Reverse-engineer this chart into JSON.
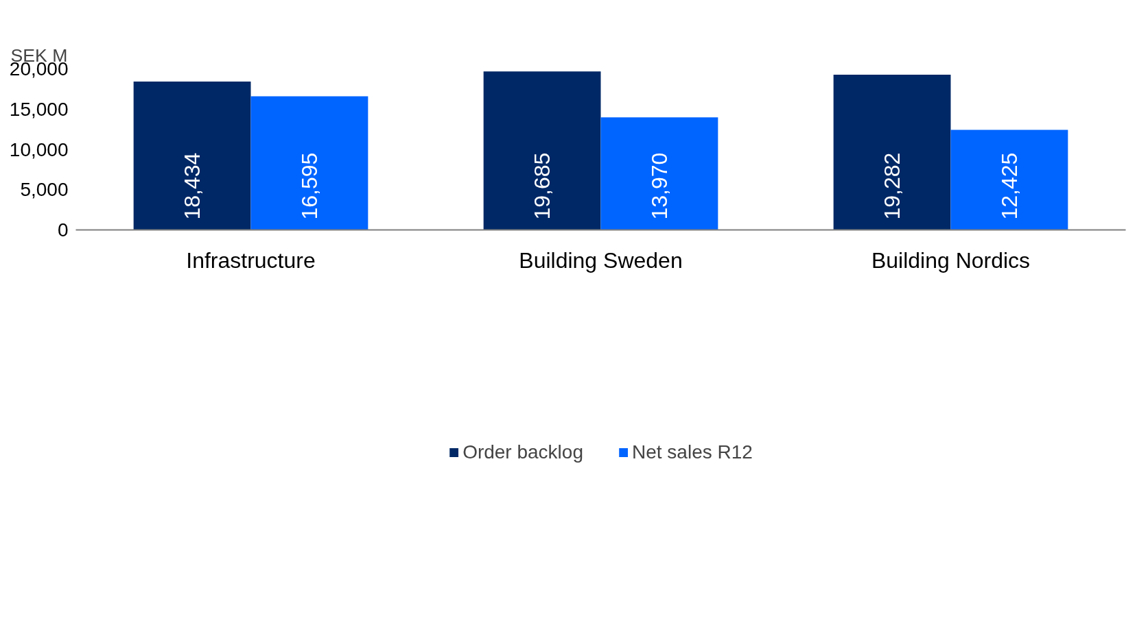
{
  "chart_data": {
    "type": "bar",
    "ylabel": "SEK M",
    "categories": [
      "Infrastructure",
      "Building Sweden",
      "Building Nordics"
    ],
    "series": [
      {
        "name": "Order backlog",
        "color": "#002866",
        "values": [
          18434,
          19685,
          19282
        ],
        "value_labels": [
          "18,434",
          "19,685",
          "19,282"
        ]
      },
      {
        "name": "Net sales R12",
        "color": "#0064ff",
        "values": [
          16595,
          13970,
          12425
        ],
        "value_labels": [
          "16,595",
          "13,970",
          "12,425"
        ]
      }
    ],
    "ylim": [
      0,
      20000
    ],
    "yticks": [
      {
        "value": 0,
        "label": "0"
      },
      {
        "value": 5000,
        "label": "5,000"
      },
      {
        "value": 10000,
        "label": "10,000"
      },
      {
        "value": 15000,
        "label": "15,000"
      },
      {
        "value": 20000,
        "label": "20,000"
      }
    ],
    "grid": false,
    "legend": "bottom"
  }
}
